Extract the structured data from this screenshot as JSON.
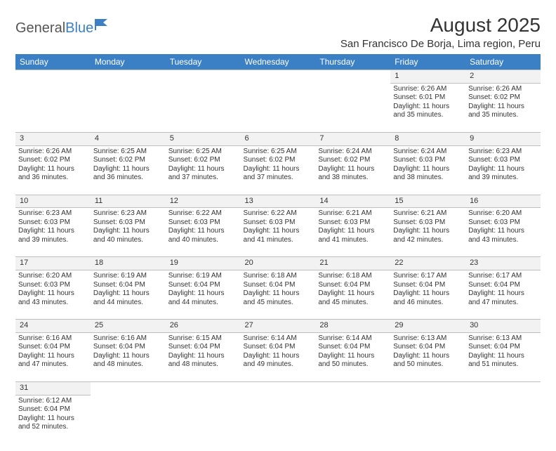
{
  "brand": {
    "part1": "General",
    "part2": "Blue"
  },
  "header": {
    "title": "August 2025",
    "location": "San Francisco De Borja, Lima region, Peru"
  },
  "colors": {
    "header_bg": "#3b7fc4",
    "header_text": "#ffffff",
    "daynum_bg": "#f2f2f2",
    "border": "#bfbfbf",
    "page_bg": "#ffffff",
    "body_text": "#333333"
  },
  "weekdays": [
    "Sunday",
    "Monday",
    "Tuesday",
    "Wednesday",
    "Thursday",
    "Friday",
    "Saturday"
  ],
  "weeks": [
    {
      "nums": [
        "",
        "",
        "",
        "",
        "",
        "1",
        "2"
      ],
      "cells": [
        null,
        null,
        null,
        null,
        null,
        {
          "sr": "Sunrise: 6:26 AM",
          "ss": "Sunset: 6:01 PM",
          "d1": "Daylight: 11 hours",
          "d2": "and 35 minutes."
        },
        {
          "sr": "Sunrise: 6:26 AM",
          "ss": "Sunset: 6:02 PM",
          "d1": "Daylight: 11 hours",
          "d2": "and 35 minutes."
        }
      ]
    },
    {
      "nums": [
        "3",
        "4",
        "5",
        "6",
        "7",
        "8",
        "9"
      ],
      "cells": [
        {
          "sr": "Sunrise: 6:26 AM",
          "ss": "Sunset: 6:02 PM",
          "d1": "Daylight: 11 hours",
          "d2": "and 36 minutes."
        },
        {
          "sr": "Sunrise: 6:25 AM",
          "ss": "Sunset: 6:02 PM",
          "d1": "Daylight: 11 hours",
          "d2": "and 36 minutes."
        },
        {
          "sr": "Sunrise: 6:25 AM",
          "ss": "Sunset: 6:02 PM",
          "d1": "Daylight: 11 hours",
          "d2": "and 37 minutes."
        },
        {
          "sr": "Sunrise: 6:25 AM",
          "ss": "Sunset: 6:02 PM",
          "d1": "Daylight: 11 hours",
          "d2": "and 37 minutes."
        },
        {
          "sr": "Sunrise: 6:24 AM",
          "ss": "Sunset: 6:02 PM",
          "d1": "Daylight: 11 hours",
          "d2": "and 38 minutes."
        },
        {
          "sr": "Sunrise: 6:24 AM",
          "ss": "Sunset: 6:03 PM",
          "d1": "Daylight: 11 hours",
          "d2": "and 38 minutes."
        },
        {
          "sr": "Sunrise: 6:23 AM",
          "ss": "Sunset: 6:03 PM",
          "d1": "Daylight: 11 hours",
          "d2": "and 39 minutes."
        }
      ]
    },
    {
      "nums": [
        "10",
        "11",
        "12",
        "13",
        "14",
        "15",
        "16"
      ],
      "cells": [
        {
          "sr": "Sunrise: 6:23 AM",
          "ss": "Sunset: 6:03 PM",
          "d1": "Daylight: 11 hours",
          "d2": "and 39 minutes."
        },
        {
          "sr": "Sunrise: 6:23 AM",
          "ss": "Sunset: 6:03 PM",
          "d1": "Daylight: 11 hours",
          "d2": "and 40 minutes."
        },
        {
          "sr": "Sunrise: 6:22 AM",
          "ss": "Sunset: 6:03 PM",
          "d1": "Daylight: 11 hours",
          "d2": "and 40 minutes."
        },
        {
          "sr": "Sunrise: 6:22 AM",
          "ss": "Sunset: 6:03 PM",
          "d1": "Daylight: 11 hours",
          "d2": "and 41 minutes."
        },
        {
          "sr": "Sunrise: 6:21 AM",
          "ss": "Sunset: 6:03 PM",
          "d1": "Daylight: 11 hours",
          "d2": "and 41 minutes."
        },
        {
          "sr": "Sunrise: 6:21 AM",
          "ss": "Sunset: 6:03 PM",
          "d1": "Daylight: 11 hours",
          "d2": "and 42 minutes."
        },
        {
          "sr": "Sunrise: 6:20 AM",
          "ss": "Sunset: 6:03 PM",
          "d1": "Daylight: 11 hours",
          "d2": "and 43 minutes."
        }
      ]
    },
    {
      "nums": [
        "17",
        "18",
        "19",
        "20",
        "21",
        "22",
        "23"
      ],
      "cells": [
        {
          "sr": "Sunrise: 6:20 AM",
          "ss": "Sunset: 6:03 PM",
          "d1": "Daylight: 11 hours",
          "d2": "and 43 minutes."
        },
        {
          "sr": "Sunrise: 6:19 AM",
          "ss": "Sunset: 6:04 PM",
          "d1": "Daylight: 11 hours",
          "d2": "and 44 minutes."
        },
        {
          "sr": "Sunrise: 6:19 AM",
          "ss": "Sunset: 6:04 PM",
          "d1": "Daylight: 11 hours",
          "d2": "and 44 minutes."
        },
        {
          "sr": "Sunrise: 6:18 AM",
          "ss": "Sunset: 6:04 PM",
          "d1": "Daylight: 11 hours",
          "d2": "and 45 minutes."
        },
        {
          "sr": "Sunrise: 6:18 AM",
          "ss": "Sunset: 6:04 PM",
          "d1": "Daylight: 11 hours",
          "d2": "and 45 minutes."
        },
        {
          "sr": "Sunrise: 6:17 AM",
          "ss": "Sunset: 6:04 PM",
          "d1": "Daylight: 11 hours",
          "d2": "and 46 minutes."
        },
        {
          "sr": "Sunrise: 6:17 AM",
          "ss": "Sunset: 6:04 PM",
          "d1": "Daylight: 11 hours",
          "d2": "and 47 minutes."
        }
      ]
    },
    {
      "nums": [
        "24",
        "25",
        "26",
        "27",
        "28",
        "29",
        "30"
      ],
      "cells": [
        {
          "sr": "Sunrise: 6:16 AM",
          "ss": "Sunset: 6:04 PM",
          "d1": "Daylight: 11 hours",
          "d2": "and 47 minutes."
        },
        {
          "sr": "Sunrise: 6:16 AM",
          "ss": "Sunset: 6:04 PM",
          "d1": "Daylight: 11 hours",
          "d2": "and 48 minutes."
        },
        {
          "sr": "Sunrise: 6:15 AM",
          "ss": "Sunset: 6:04 PM",
          "d1": "Daylight: 11 hours",
          "d2": "and 48 minutes."
        },
        {
          "sr": "Sunrise: 6:14 AM",
          "ss": "Sunset: 6:04 PM",
          "d1": "Daylight: 11 hours",
          "d2": "and 49 minutes."
        },
        {
          "sr": "Sunrise: 6:14 AM",
          "ss": "Sunset: 6:04 PM",
          "d1": "Daylight: 11 hours",
          "d2": "and 50 minutes."
        },
        {
          "sr": "Sunrise: 6:13 AM",
          "ss": "Sunset: 6:04 PM",
          "d1": "Daylight: 11 hours",
          "d2": "and 50 minutes."
        },
        {
          "sr": "Sunrise: 6:13 AM",
          "ss": "Sunset: 6:04 PM",
          "d1": "Daylight: 11 hours",
          "d2": "and 51 minutes."
        }
      ]
    },
    {
      "nums": [
        "31",
        "",
        "",
        "",
        "",
        "",
        ""
      ],
      "cells": [
        {
          "sr": "Sunrise: 6:12 AM",
          "ss": "Sunset: 6:04 PM",
          "d1": "Daylight: 11 hours",
          "d2": "and 52 minutes."
        },
        null,
        null,
        null,
        null,
        null,
        null
      ]
    }
  ]
}
